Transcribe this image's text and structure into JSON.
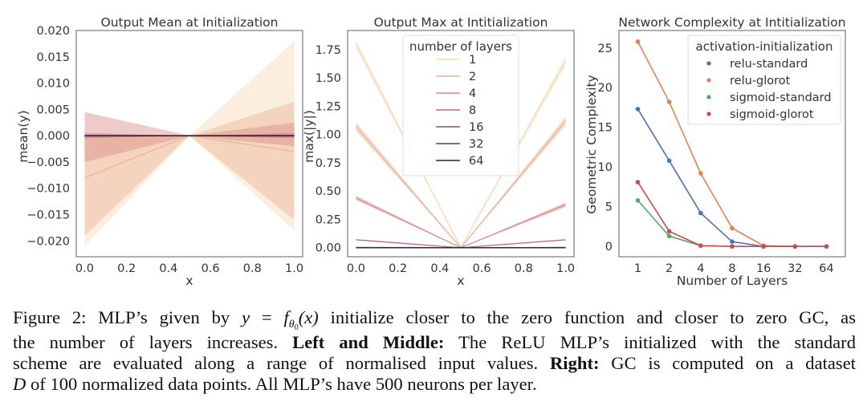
{
  "chart_data": [
    {
      "type": "line",
      "title": "Output Mean at Initialization",
      "xlabel": "x",
      "ylabel": "mean(y)",
      "xlim": [
        -0.04,
        1.04
      ],
      "ylim": [
        -0.023,
        0.02
      ],
      "xticks": [
        "0.0",
        "0.2",
        "0.4",
        "0.6",
        "0.8",
        "1.0"
      ],
      "xtick_values": [
        0.0,
        0.2,
        0.4,
        0.6,
        0.8,
        1.0
      ],
      "yticks": [
        "0.020",
        "0.015",
        "0.010",
        "0.005",
        "0.000",
        "−0.005",
        "−0.010",
        "−0.015",
        "−0.020"
      ],
      "ytick_values": [
        0.02,
        0.015,
        0.01,
        0.005,
        0.0,
        -0.005,
        -0.01,
        -0.015,
        -0.02
      ],
      "grid": false,
      "x": [
        0.0,
        0.5,
        1.0
      ],
      "series": [
        {
          "name": "1",
          "color": "#f7d9b5",
          "mean": [
            -0.009,
            0.0,
            0.0
          ],
          "band_low": [
            -0.021,
            0.0,
            -0.018
          ],
          "band_high": [
            0.0,
            0.0,
            0.018
          ]
        },
        {
          "name": "2",
          "color": "#eab298",
          "mean": [
            -0.008,
            0.0,
            -0.003
          ],
          "band_low": [
            -0.019,
            0.0,
            -0.016
          ],
          "band_high": [
            0.0,
            0.0,
            0.0065
          ]
        },
        {
          "name": "4",
          "color": "#d98c86",
          "mean": [
            0.0,
            0.0,
            0.0
          ],
          "band_low": [
            -0.005,
            0.0,
            -0.002
          ],
          "band_high": [
            0.0045,
            0.0,
            0.0025
          ]
        },
        {
          "name": "8",
          "color": "#b7687d",
          "mean": [
            0.0,
            0.0,
            0.0
          ],
          "band_low": [
            -0.0005,
            0.0,
            -0.0005
          ],
          "band_high": [
            0.0005,
            0.0,
            0.0005
          ]
        },
        {
          "name": "16",
          "color": "#8f4d7a",
          "mean": [
            0.0,
            0.0,
            0.0
          ],
          "band_low": [
            0.0,
            0.0,
            0.0
          ],
          "band_high": [
            0.0,
            0.0,
            0.0
          ]
        },
        {
          "name": "32",
          "color": "#5e3a6e",
          "mean": [
            0.0,
            0.0,
            0.0
          ],
          "band_low": [
            0.0,
            0.0,
            0.0
          ],
          "band_high": [
            0.0,
            0.0,
            0.0
          ]
        },
        {
          "name": "64",
          "color": "#2e1e3b",
          "mean": [
            0.0,
            0.0,
            0.0
          ],
          "band_low": [
            0.0,
            0.0,
            0.0
          ],
          "band_high": [
            0.0,
            0.0,
            0.0
          ]
        }
      ]
    },
    {
      "type": "line",
      "title": "Output Max at Intitialization",
      "xlabel": "x",
      "ylabel": "max(|y|)",
      "xlim": [
        -0.04,
        1.04
      ],
      "ylim": [
        -0.08,
        1.92
      ],
      "xticks": [
        "0.0",
        "0.2",
        "0.4",
        "0.6",
        "0.8",
        "1.0"
      ],
      "xtick_values": [
        0.0,
        0.2,
        0.4,
        0.6,
        0.8,
        1.0
      ],
      "yticks": [
        "1.75",
        "1.50",
        "1.25",
        "1.00",
        "0.75",
        "0.50",
        "0.25",
        "0.00"
      ],
      "ytick_values": [
        1.75,
        1.5,
        1.25,
        1.0,
        0.75,
        0.5,
        0.25,
        0.0
      ],
      "grid": false,
      "legend": {
        "title": "number of layers",
        "placement": "upper-center"
      },
      "x": [
        0.0,
        0.5,
        1.0
      ],
      "series": [
        {
          "name": "1",
          "color": "#f7d9b5",
          "values": [
            1.8,
            0.0,
            1.65
          ],
          "band": 0.04
        },
        {
          "name": "2",
          "color": "#eab298",
          "values": [
            1.07,
            0.0,
            1.12
          ],
          "band": 0.04
        },
        {
          "name": "4",
          "color": "#d98c86",
          "values": [
            0.44,
            0.0,
            0.38
          ],
          "band": 0.02
        },
        {
          "name": "8",
          "color": "#b7687d",
          "values": [
            0.07,
            0.0,
            0.07
          ],
          "band": 0.005
        },
        {
          "name": "16",
          "color": "#8f4d7a",
          "values": [
            0.002,
            0.0,
            0.002
          ],
          "band": 0.0
        },
        {
          "name": "32",
          "color": "#5e3a6e",
          "values": [
            0.0,
            0.0,
            0.0
          ],
          "band": 0.0
        },
        {
          "name": "64",
          "color": "#2e1e3b",
          "values": [
            0.0,
            0.0,
            0.0
          ],
          "band": 0.0
        }
      ]
    },
    {
      "type": "line",
      "title": "Network Complexity at Intitialization",
      "xlabel": "Number of Layers",
      "ylabel": "Geometric Complexity",
      "categories": [
        "1",
        "2",
        "4",
        "8",
        "16",
        "32",
        "64"
      ],
      "ylim": [
        -1.3,
        27.2
      ],
      "yticks": [
        "25",
        "20",
        "15",
        "10",
        "5",
        "0"
      ],
      "ytick_values": [
        25,
        20,
        15,
        10,
        5,
        0
      ],
      "grid": false,
      "legend": {
        "title": "activation-initialization",
        "placement": "top-right"
      },
      "series": [
        {
          "name": "relu-standard",
          "color": "#4c72b0",
          "values": [
            17.3,
            10.8,
            4.2,
            0.6,
            0.0,
            0.0,
            0.0
          ]
        },
        {
          "name": "relu-glorot",
          "color": "#dd8452",
          "values": [
            25.8,
            18.2,
            9.2,
            2.3,
            0.1,
            0.0,
            0.0
          ]
        },
        {
          "name": "sigmoid-standard",
          "color": "#55a868",
          "values": [
            5.8,
            1.3,
            0.1,
            0.0,
            0.0,
            0.0,
            0.0
          ]
        },
        {
          "name": "sigmoid-glorot",
          "color": "#c44e52",
          "values": [
            8.1,
            1.9,
            0.1,
            0.0,
            0.0,
            0.0,
            0.0
          ]
        }
      ]
    }
  ],
  "caption": {
    "line1_prefix": "Figure 2: MLP’s given by ",
    "math_y": "y",
    "math_eq": " = ",
    "math_f": "f",
    "math_theta": "θ",
    "math_zero": "0",
    "math_x": "(x)",
    "line1_suffix": " initialize closer to the zero function and closer to zero GC, as",
    "line2_prefix": "the number of layers increases. ",
    "line2_bold": "Left and Middle:",
    "line2_suffix": " The ReLU MLP’s initialized with the standard",
    "line3_prefix": "scheme are evaluated along a range of normalised input values. ",
    "line3_bold": "Right:",
    "line3_suffix": " GC is computed on a dataset",
    "line4_italic": "D",
    "line4_suffix": " of 100 normalized data points. All MLP’s have 500 neurons per layer."
  }
}
